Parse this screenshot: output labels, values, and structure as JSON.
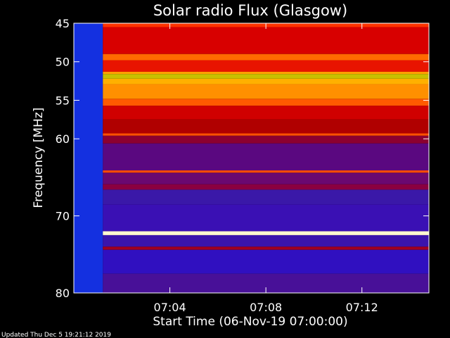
{
  "chart_data": {
    "type": "heatmap",
    "title": "Solar radio Flux (Glasgow)",
    "xlabel": "Start Time (06-Nov-19 07:00:00)",
    "ylabel": "Frequency [MHz]",
    "x_ticks": [
      "07:04",
      "07:08",
      "07:12"
    ],
    "x_tick_minutes": [
      4,
      8,
      12
    ],
    "xlim_minutes": [
      0,
      14.79
    ],
    "y_ticks": [
      45,
      50,
      55,
      60,
      70,
      80
    ],
    "ylim": [
      45,
      80
    ],
    "y_inverted": true,
    "start_time": "06-Nov-19 07:00:00",
    "data_start_minute": 1.21,
    "bands": [
      {
        "f0": 45.0,
        "f1": 45.5,
        "color": "#ff3300"
      },
      {
        "f0": 45.5,
        "f1": 49.0,
        "color": "#d80000"
      },
      {
        "f0": 49.0,
        "f1": 49.8,
        "color": "#ff6a00"
      },
      {
        "f0": 49.8,
        "f1": 51.3,
        "color": "#e81400"
      },
      {
        "f0": 51.3,
        "f1": 51.6,
        "color": "#ffa000"
      },
      {
        "f0": 51.6,
        "f1": 52.2,
        "color": "#c8c000"
      },
      {
        "f0": 52.2,
        "f1": 52.9,
        "color": "#ffb000"
      },
      {
        "f0": 52.9,
        "f1": 54.8,
        "color": "#ff9000"
      },
      {
        "f0": 54.8,
        "f1": 55.7,
        "color": "#ff5a00"
      },
      {
        "f0": 55.7,
        "f1": 57.5,
        "color": "#d00000"
      },
      {
        "f0": 57.5,
        "f1": 59.3,
        "color": "#b00000"
      },
      {
        "f0": 59.3,
        "f1": 59.6,
        "color": "#ff5000"
      },
      {
        "f0": 59.6,
        "f1": 60.6,
        "color": "#8c0030"
      },
      {
        "f0": 60.6,
        "f1": 64.1,
        "color": "#5a0880"
      },
      {
        "f0": 64.1,
        "f1": 64.4,
        "color": "#ff4a00"
      },
      {
        "f0": 64.4,
        "f1": 65.9,
        "color": "#6a0870"
      },
      {
        "f0": 65.9,
        "f1": 66.6,
        "color": "#8a0040"
      },
      {
        "f0": 66.6,
        "f1": 68.5,
        "color": "#3a18a8"
      },
      {
        "f0": 68.5,
        "f1": 72.0,
        "color": "#3a10b4"
      },
      {
        "f0": 72.0,
        "f1": 72.5,
        "color": "#fff8d0"
      },
      {
        "f0": 72.5,
        "f1": 74.0,
        "color": "#3a14ac"
      },
      {
        "f0": 74.0,
        "f1": 74.4,
        "color": "#a00020"
      },
      {
        "f0": 74.4,
        "f1": 77.5,
        "color": "#3010c0"
      },
      {
        "f0": 77.5,
        "f1": 80.0,
        "color": "#481098"
      }
    ],
    "pre_event_color": "#1430e0"
  },
  "footer_text": "Updated Thu Dec  5 19:21:12 2019"
}
